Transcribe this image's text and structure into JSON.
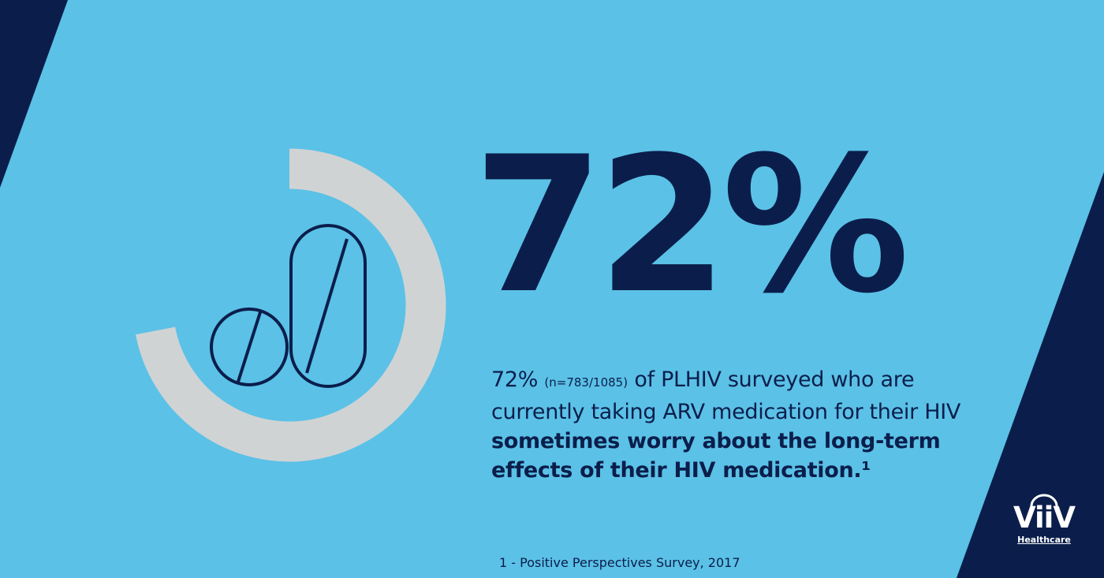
{
  "colors": {
    "background": "#5bc1e7",
    "navy": "#0b1e4b",
    "ring": "#d0d3d4",
    "logo": "#ffffff"
  },
  "stat": {
    "value": "72%",
    "ring_fraction": 0.72
  },
  "description": {
    "lead": "72%",
    "sample": "(n=783/1085)",
    "body": "of PLHIV surveyed who are currently taking ARV medication for their HIV",
    "emphasis": "sometimes worry about the long-term effects of their HIV medication.¹"
  },
  "icons": {
    "round_pill": "round-pill-icon",
    "capsule_pill": "capsule-pill-icon"
  },
  "footnote": "1 - Positive Perspectives Survey, 2017",
  "logo": {
    "word": "ViiV",
    "sub": "Healthcare"
  }
}
